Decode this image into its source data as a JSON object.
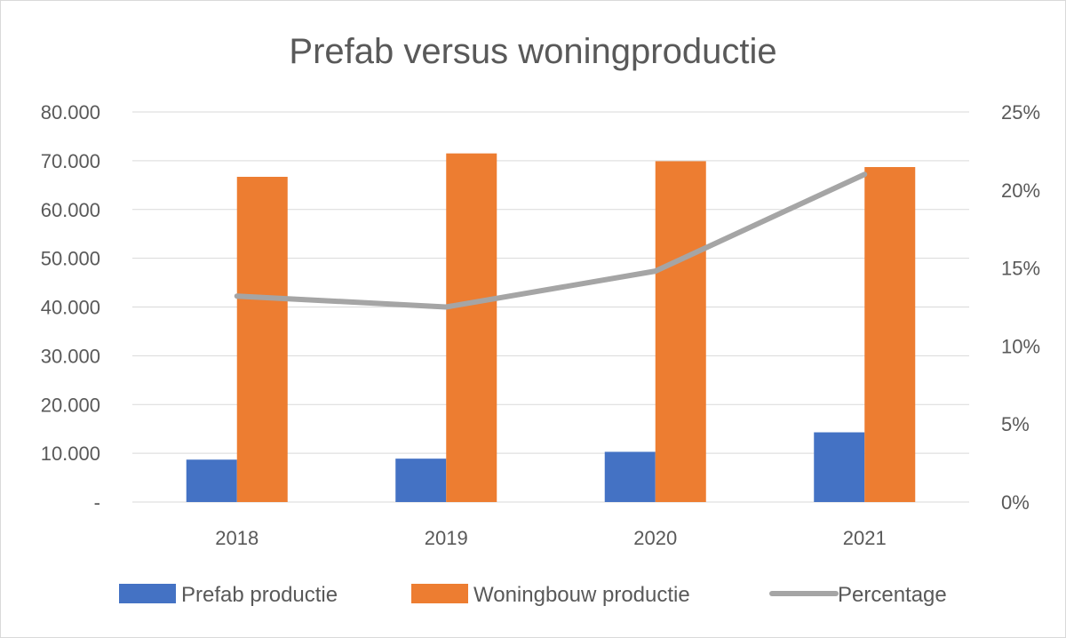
{
  "chart_data": {
    "type": "bar",
    "title": "Prefab versus woningproductie",
    "categories": [
      "2018",
      "2019",
      "2020",
      "2021"
    ],
    "y_left": {
      "ticks": [
        "-",
        "10.000",
        "20.000",
        "30.000",
        "40.000",
        "50.000",
        "60.000",
        "70.000",
        "80.000"
      ],
      "ylim": [
        0,
        80000
      ]
    },
    "y_right": {
      "ticks": [
        "0%",
        "5%",
        "10%",
        "15%",
        "20%",
        "25%"
      ],
      "ylim": [
        0,
        0.25
      ]
    },
    "series": [
      {
        "name": "Prefab productie",
        "type": "bar",
        "axis": "left",
        "color": "#4472c4",
        "values": [
          8700,
          8900,
          10300,
          14300
        ]
      },
      {
        "name": "Woningbouw productie",
        "type": "bar",
        "axis": "left",
        "color": "#ed7d31",
        "values": [
          66700,
          71500,
          69900,
          68700
        ]
      },
      {
        "name": "Percentage",
        "type": "line",
        "axis": "right",
        "color": "#a5a5a5",
        "values": [
          0.132,
          0.125,
          0.148,
          0.21
        ]
      }
    ],
    "grid": true,
    "legend_position": "bottom"
  }
}
